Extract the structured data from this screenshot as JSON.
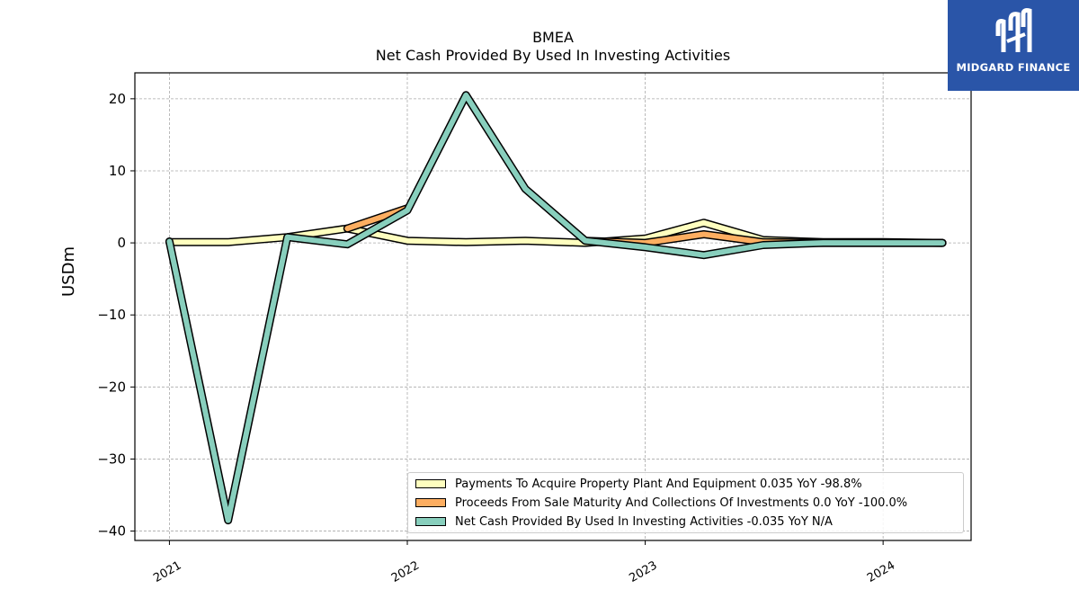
{
  "logo": {
    "text": "MIDGARD FINANCE",
    "color": "#2a55a8"
  },
  "chart_data": {
    "type": "line",
    "title": "BMEA",
    "subtitle": "Net Cash Provided By Used In Investing Activities",
    "ylabel": "USDm",
    "xlabel": "",
    "ylim": [
      -41.3,
      23.6
    ],
    "xlim": [
      "2020-11-09",
      "2024-05-15"
    ],
    "yticks": [
      20,
      10,
      0,
      -10,
      -20,
      -30,
      -40
    ],
    "ytick_labels": [
      "20",
      "10",
      "0",
      "−10",
      "−20",
      "−30",
      "−40"
    ],
    "xticks": [
      "2021-01-01",
      "2022-01-01",
      "2023-01-01",
      "2024-01-01"
    ],
    "xtick_labels": [
      "2021",
      "2022",
      "2023",
      "2024"
    ],
    "grid": true,
    "legend_position": "bottom-right",
    "x": [
      "2021-01-01",
      "2021-04-01",
      "2021-07-01",
      "2021-10-01",
      "2022-01-01",
      "2022-04-01",
      "2022-07-01",
      "2022-10-01",
      "2023-01-01",
      "2023-04-01",
      "2023-07-01",
      "2023-10-01",
      "2024-01-01",
      "2024-04-01"
    ],
    "series": [
      {
        "name": "Payments To Acquire Property Plant And Equipment  0.035 YoY -98.8%",
        "color": "#ffffbf",
        "values": [
          0.1,
          0.1,
          0.8,
          2.0,
          0.3,
          0.1,
          0.3,
          0.0,
          0.6,
          2.8,
          0.4,
          0.1,
          0.1,
          0.0
        ]
      },
      {
        "name": "Proceeds From Sale Maturity And Collections Of Investments  0.0 YoY -100.0%",
        "color": "#fdae61",
        "values": [
          null,
          null,
          null,
          2.0,
          4.8,
          null,
          null,
          0.3,
          0.0,
          1.2,
          0.1,
          0.0,
          0.0,
          0.0
        ]
      },
      {
        "name": "Net Cash Provided By Used In Investing Activities  -0.035 YoY N/A",
        "color": "#88cfbd",
        "values": [
          0.2,
          -38.5,
          0.8,
          -0.2,
          4.5,
          20.5,
          7.5,
          0.3,
          -0.6,
          -1.7,
          -0.3,
          0.0,
          0.0,
          0.0
        ]
      }
    ]
  }
}
